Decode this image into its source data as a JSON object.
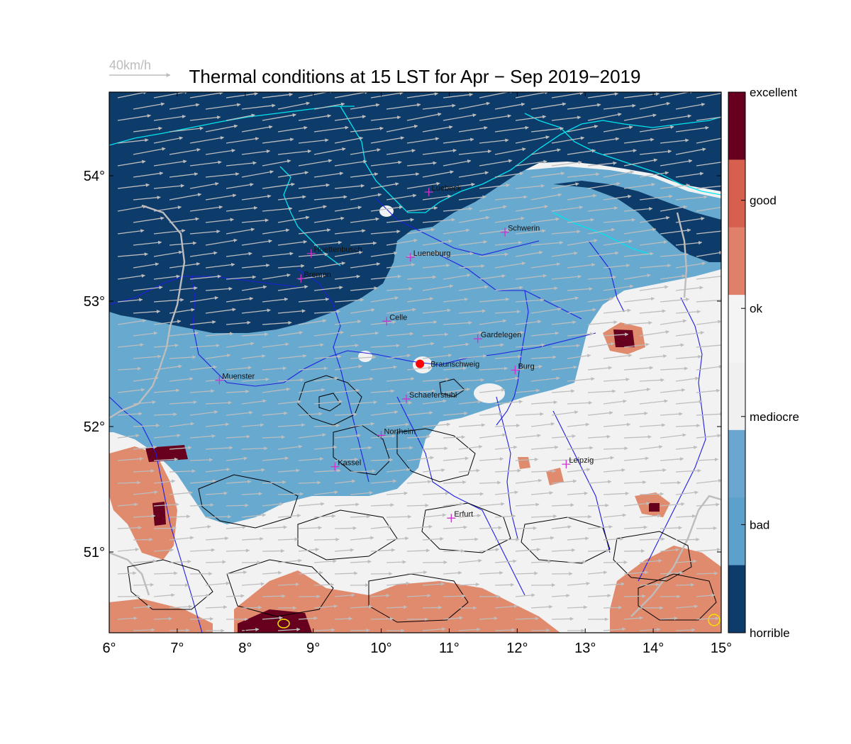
{
  "title": "Thermal conditions at 15 LST for Apr − Sep  2019−2019",
  "wind_scale_label": "40km/h",
  "x_ticks": [
    "6°",
    "7°",
    "8°",
    "9°",
    "10°",
    "11°",
    "12°",
    "13°",
    "14°",
    "15°"
  ],
  "y_ticks": [
    "54°",
    "53°",
    "52°",
    "51°"
  ],
  "colorbar": {
    "labels": [
      "excellent",
      "good",
      "ok",
      "mediocre",
      "bad",
      "horrible"
    ],
    "colors": [
      "#67001f",
      "#d6604d",
      "#e0806a",
      "#f4f4f4",
      "#f0f0f0",
      "#6aa6d0",
      "#5ea0cc",
      "#0d3c6b"
    ]
  },
  "colors": {
    "horrible": "#0d3c6b",
    "bad": "#67a9cf",
    "mediocre": "#f2f2f2",
    "ok": "#e08a6e",
    "good": "#d6604d",
    "excellent": "#67001f",
    "coast": "#00e5ee",
    "rivers": "#1f1fe0",
    "borders": "#bdbdbd",
    "wind": "#bdbdbd",
    "marker": "#ff0000",
    "city_marker": "#cc33cc"
  },
  "cities": [
    {
      "name": "Luebeck",
      "lon": 10.7,
      "lat": 53.87
    },
    {
      "name": "Schwerin",
      "lon": 11.82,
      "lat": 53.55
    },
    {
      "name": "Huettenbusch",
      "lon": 8.97,
      "lat": 53.38
    },
    {
      "name": "Lueneburg",
      "lon": 10.43,
      "lat": 53.35
    },
    {
      "name": "Bremen",
      "lon": 8.82,
      "lat": 53.18
    },
    {
      "name": "Celle",
      "lon": 10.08,
      "lat": 52.84
    },
    {
      "name": "Gardelegen",
      "lon": 11.42,
      "lat": 52.7
    },
    {
      "name": "Braunschweig",
      "lon": 10.57,
      "lat": 52.5
    },
    {
      "name": "Burg",
      "lon": 11.97,
      "lat": 52.45
    },
    {
      "name": "Muenster",
      "lon": 7.62,
      "lat": 52.37
    },
    {
      "name": "Schaeferstuhl",
      "lon": 10.37,
      "lat": 52.22
    },
    {
      "name": "Northeim",
      "lon": 10.0,
      "lat": 51.93
    },
    {
      "name": "Kassel",
      "lon": 9.32,
      "lat": 51.68
    },
    {
      "name": "Leipzig",
      "lon": 12.72,
      "lat": 51.7
    },
    {
      "name": "Erfurt",
      "lon": 11.03,
      "lat": 51.27
    }
  ],
  "home_marker": {
    "name": "Braunschweig",
    "lon": 10.57,
    "lat": 52.5
  }
}
